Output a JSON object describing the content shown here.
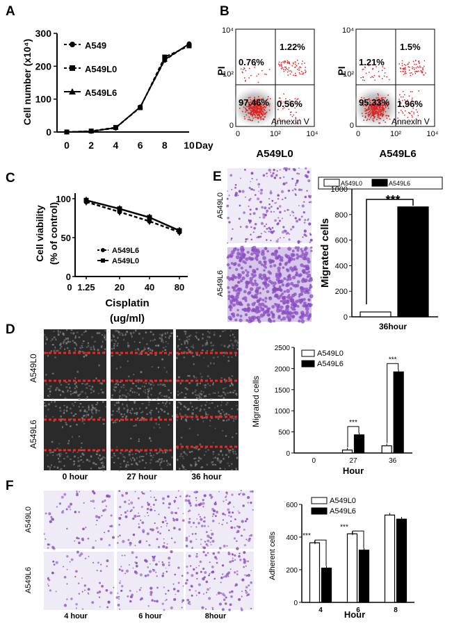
{
  "figure": {
    "panel_labels": [
      "A",
      "B",
      "C",
      "D",
      "E",
      "F"
    ],
    "b_left_name": "A549L0",
    "b_right_name": "A549L6",
    "d_row_labels": [
      "A549L0",
      "A549L6"
    ],
    "d_col_labels": [
      "0  hour",
      "27 hour",
      "36  hour"
    ],
    "e_row_labels": [
      "A549L0",
      "A549L6"
    ],
    "f_row_labels": [
      "A549L0",
      "A549L6"
    ],
    "f_col_labels": [
      "4 hour",
      "6 hour",
      "8hour"
    ]
  },
  "colors": {
    "line": "#000000",
    "dot": "#e02020",
    "density": "#b8b8b8",
    "crystal_violet": "#8a4cc2",
    "stain_light": "#eeebf6",
    "stain_dense": "#d6c6ea",
    "micrograph_bg": "#2a2a2a",
    "wound_line": "#ff2020",
    "white_bar": "#ffffff",
    "black_bar": "#000000"
  },
  "chart_data": [
    {
      "panel": "A",
      "type": "line",
      "xlabel": "Day",
      "ylabel": "Cell number (x10⁴)",
      "x": [
        0,
        2,
        4,
        6,
        8,
        10
      ],
      "xticks": [
        "0",
        "2",
        "4",
        "6",
        "8",
        "10"
      ],
      "yticks": [
        "0",
        "100",
        "200",
        "300"
      ],
      "ylim": [
        0,
        300
      ],
      "series": [
        {
          "name": "A549",
          "values": [
            0,
            2,
            12,
            76,
            218,
            268
          ],
          "style": "dashed",
          "marker": "circle"
        },
        {
          "name": "A549L0",
          "values": [
            0,
            3,
            14,
            74,
            228,
            262
          ],
          "style": "dashed",
          "marker": "square"
        },
        {
          "name": "A549L6",
          "values": [
            0,
            2,
            13,
            76,
            220,
            268
          ],
          "style": "solid",
          "marker": "triangle"
        }
      ]
    },
    {
      "panel": "B-left",
      "type": "scatter",
      "xlabel": "Annexin V",
      "ylabel": "PI",
      "xticks": [
        "0",
        "10²",
        "10⁴"
      ],
      "yticks": [
        "0",
        "10²",
        "10⁴"
      ],
      "quadrants": {
        "upper_left": "0.76%",
        "upper_right": "1.22%",
        "lower_left": "97.46%",
        "lower_right": "0.56%"
      }
    },
    {
      "panel": "B-right",
      "type": "scatter",
      "xlabel": "Annexin V",
      "ylabel": "PI",
      "xticks": [
        "0",
        "10²",
        "10⁴"
      ],
      "yticks": [
        "0",
        "10²",
        "10⁴"
      ],
      "quadrants": {
        "upper_left": "1.21%",
        "upper_right": "1.5%",
        "lower_left": "95.33%",
        "lower_right": "1.96%"
      }
    },
    {
      "panel": "C",
      "type": "line",
      "xlabel": "Cisplatin",
      "xunit": "(ug/ml)",
      "ylabel": "Cell viability",
      "ylabel2": "(% of control)",
      "categories": [
        "0",
        "1.25",
        "20",
        "40",
        "80"
      ],
      "yticks": [
        "0",
        "50",
        "100"
      ],
      "ylim": [
        0,
        100
      ],
      "series": [
        {
          "name": "A549L6",
          "style": "dashed",
          "marker": "circle",
          "values": [
            null,
            96,
            83,
            71,
            57
          ]
        },
        {
          "name": "A549L0",
          "style": "solid",
          "marker": "square",
          "values": [
            null,
            98,
            87,
            76,
            59
          ]
        }
      ]
    },
    {
      "panel": "D",
      "type": "bar",
      "xlabel": "Hour",
      "ylabel": "Migrated  cells",
      "categories": [
        "0",
        "27",
        "36"
      ],
      "yticks": [
        "0",
        "500",
        "1000",
        "1500",
        "2000",
        "2500"
      ],
      "ylim": [
        0,
        2500
      ],
      "series": [
        {
          "name": "A549L0",
          "values": [
            0,
            70,
            170
          ]
        },
        {
          "name": "A549L6",
          "values": [
            0,
            430,
            1920
          ]
        }
      ],
      "annotations": [
        "***",
        "***"
      ]
    },
    {
      "panel": "E",
      "type": "bar",
      "xlabel": "36hour",
      "ylabel": "Migrated cells",
      "categories": [
        "36hour"
      ],
      "yticks": [
        "0",
        "200",
        "400",
        "600",
        "800",
        "1000"
      ],
      "ylim": [
        0,
        1000
      ],
      "series": [
        {
          "name": "A549L0",
          "values": [
            38
          ]
        },
        {
          "name": "A549L6",
          "values": [
            860
          ]
        }
      ],
      "annotations": [
        "***"
      ]
    },
    {
      "panel": "F",
      "type": "bar",
      "xlabel": "Hour",
      "ylabel": "Adherent cells",
      "categories": [
        "4",
        "6",
        "8"
      ],
      "yticks": [
        "0",
        "200",
        "400",
        "600"
      ],
      "ylim": [
        0,
        600
      ],
      "series": [
        {
          "name": "A549L0",
          "values": [
            365,
            420,
            535
          ]
        },
        {
          "name": "A549L6",
          "values": [
            210,
            320,
            510
          ]
        }
      ],
      "annotations": [
        "***",
        "***"
      ]
    }
  ]
}
